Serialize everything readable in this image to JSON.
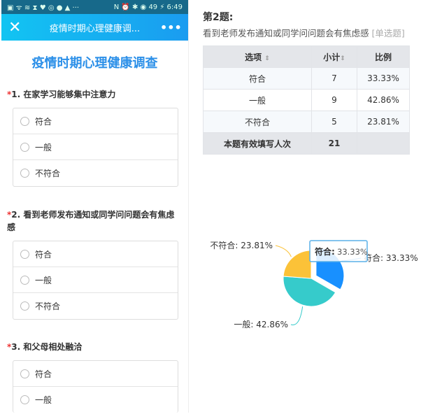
{
  "phone": {
    "status_left": "▣ ᯤ ≋ ⧗ ♥ ◎ ● ▲ ···",
    "status_right": "N ⏰ ✱ ◉ 49 ⚡ 6:49",
    "nav_title": "疫情时期心理健康调...",
    "close_icon": "✕",
    "more_icon": "•••",
    "survey_title": "疫情时期心理健康调查",
    "questions": [
      {
        "label": "1. 在家学习能够集中注意力",
        "options": [
          "符合",
          "一般",
          "不符合"
        ]
      },
      {
        "label": "2. 看到老师发布通知或同学问问题会有焦虑感",
        "options": [
          "符合",
          "一般",
          "不符合"
        ]
      },
      {
        "label": "3. 和父母相处融洽",
        "options": [
          "符合",
          "一般"
        ]
      }
    ]
  },
  "result": {
    "heading": "第2题:",
    "question": "看到老师发布通知或同学问问题会有焦虑感",
    "type": "[单选题]",
    "headers": [
      "选项",
      "小计",
      "比例"
    ],
    "rows": [
      [
        "符合",
        "7",
        "33.33%"
      ],
      [
        "一般",
        "9",
        "42.86%"
      ],
      [
        "不符合",
        "5",
        "23.81%"
      ]
    ],
    "footer": [
      "本题有效填写人次",
      "21",
      ""
    ]
  },
  "chart_data": {
    "type": "pie",
    "categories": [
      "符合",
      "一般",
      "不符合"
    ],
    "values": [
      33.33,
      42.86,
      23.81
    ],
    "labels": [
      "符合: 33.33%",
      "一般: 42.86%",
      "不符合: 23.81%"
    ],
    "colors": [
      "#1890ff",
      "#36cbcb",
      "#fbc238"
    ],
    "tooltip": {
      "name": "符合:",
      "value": "33.33%"
    }
  }
}
